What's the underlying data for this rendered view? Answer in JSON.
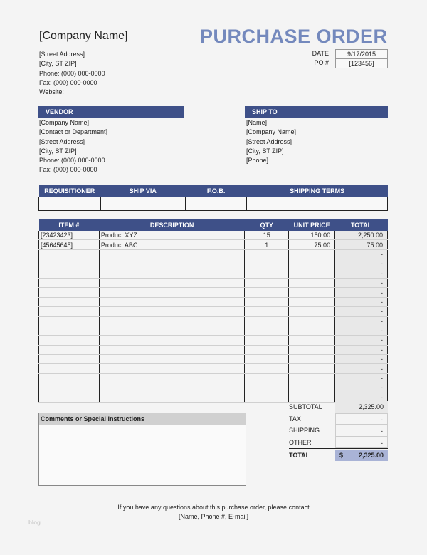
{
  "company": {
    "name": "[Company Name]",
    "street": "[Street Address]",
    "city": "[City, ST  ZIP]",
    "phone": "Phone: (000) 000-0000",
    "fax": "Fax: (000) 000-0000",
    "website": "Website:"
  },
  "title": "PURCHASE ORDER",
  "meta": {
    "date_label": "DATE",
    "date_value": "9/17/2015",
    "po_label": "PO #",
    "po_value": "[123456]"
  },
  "vendor": {
    "header": "VENDOR",
    "lines": [
      "[Company Name]",
      "[Contact or Department]",
      "[Street Address]",
      "[City, ST  ZIP]",
      "Phone: (000) 000-0000",
      "Fax: (000) 000-0000"
    ]
  },
  "shipto": {
    "header": "SHIP TO",
    "lines": [
      "[Name]",
      "[Company Name]",
      "[Street Address]",
      "[City, ST  ZIP]",
      "[Phone]"
    ]
  },
  "shipping": {
    "headers": [
      "REQUISITIONER",
      "SHIP VIA",
      "F.O.B.",
      "SHIPPING TERMS"
    ],
    "values": [
      "",
      "",
      "",
      ""
    ]
  },
  "items": {
    "headers": [
      "ITEM #",
      "DESCRIPTION",
      "QTY",
      "UNIT PRICE",
      "TOTAL"
    ],
    "rows": [
      [
        "[23423423]",
        "Product XYZ",
        "15",
        "150.00",
        "2,250.00"
      ],
      [
        "[45645645]",
        "Product ABC",
        "1",
        "75.00",
        "75.00"
      ],
      [
        "",
        "",
        "",
        "",
        "-"
      ],
      [
        "",
        "",
        "",
        "",
        "-"
      ],
      [
        "",
        "",
        "",
        "",
        "-"
      ],
      [
        "",
        "",
        "",
        "",
        "-"
      ],
      [
        "",
        "",
        "",
        "",
        "-"
      ],
      [
        "",
        "",
        "",
        "",
        "-"
      ],
      [
        "",
        "",
        "",
        "",
        "-"
      ],
      [
        "",
        "",
        "",
        "",
        "-"
      ],
      [
        "",
        "",
        "",
        "",
        "-"
      ],
      [
        "",
        "",
        "",
        "",
        "-"
      ],
      [
        "",
        "",
        "",
        "",
        "-"
      ],
      [
        "",
        "",
        "",
        "",
        "-"
      ],
      [
        "",
        "",
        "",
        "",
        "-"
      ],
      [
        "",
        "",
        "",
        "",
        "-"
      ],
      [
        "",
        "",
        "",
        "",
        "-"
      ],
      [
        "",
        "",
        "",
        "",
        "-"
      ]
    ]
  },
  "comments": {
    "header": "Comments or Special Instructions"
  },
  "totals": {
    "subtotal_label": "SUBTOTAL",
    "subtotal": "2,325.00",
    "tax_label": "TAX",
    "tax": "-",
    "shipping_label": "SHIPPING",
    "shipping": "-",
    "other_label": "OTHER",
    "other": "-",
    "total_label": "TOTAL",
    "currency": "$",
    "total": "2,325.00"
  },
  "footer": {
    "line1": "If you have any questions about this purchase order, please contact",
    "line2": "[Name, Phone #, E-mail]"
  },
  "watermark": "blog",
  "colors": {
    "header_bar": "#3e5088",
    "title": "#7489bd",
    "total_highlight": "#a9b3d6"
  }
}
